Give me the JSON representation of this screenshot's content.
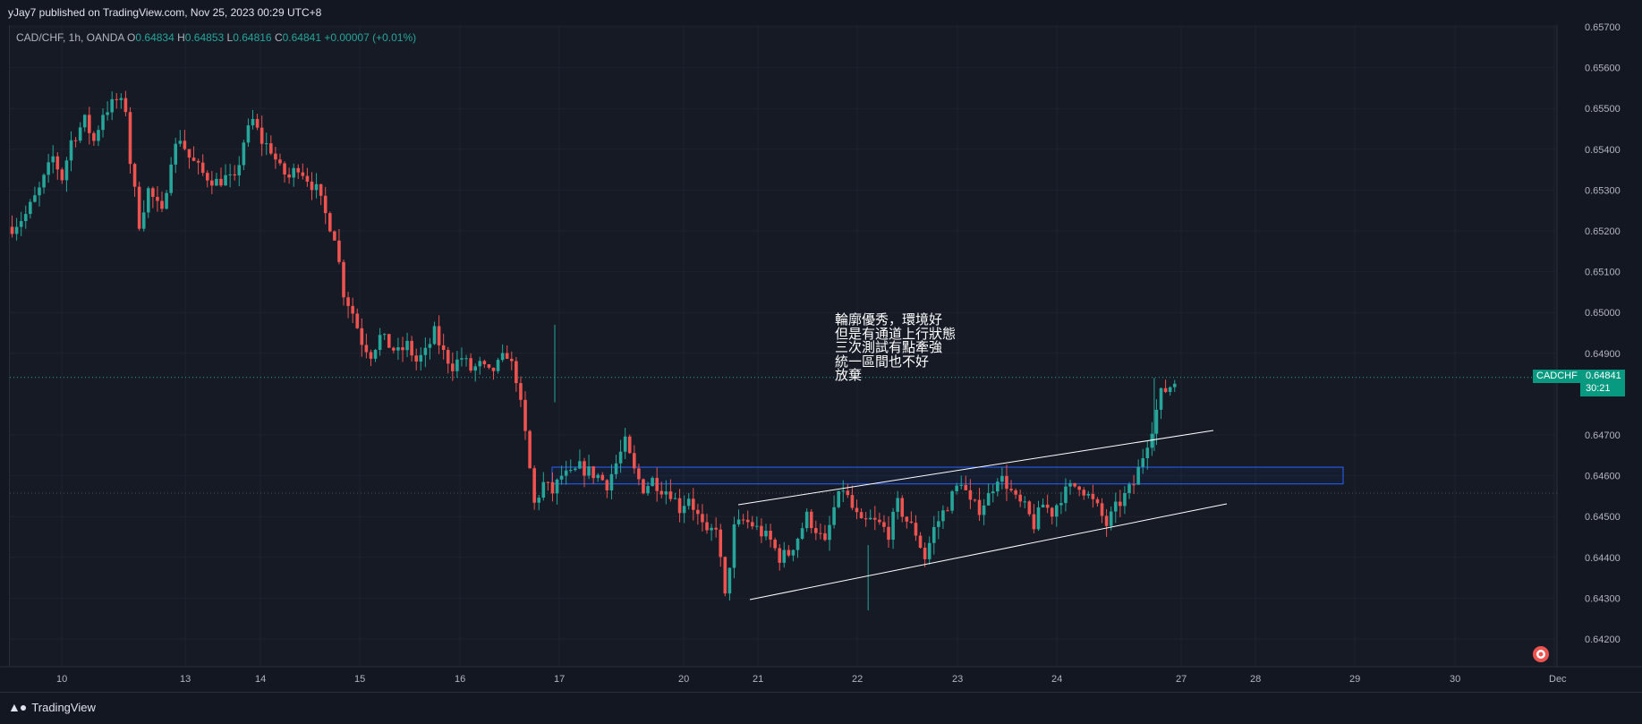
{
  "header": {
    "published": "yJay7 published on TradingView.com, Nov 25, 2023 00:29 UTC+8"
  },
  "legend": {
    "symbol": "CAD/CHF, 1h, OANDA",
    "o_key": "O",
    "o": "0.64834",
    "h_key": "H",
    "h": "0.64853",
    "l_key": "L",
    "l": "0.64816",
    "c_key": "C",
    "c": "0.64841",
    "change": "+0.00007 (+0.01%)"
  },
  "annotation": {
    "lines": [
      "輪廓優秀，環境好",
      "但是有通道上行狀態",
      "三次測試有點牽強",
      "統一區間也不好",
      "放棄"
    ]
  },
  "price_label": {
    "symbol": "CADCHF",
    "price": "0.64841",
    "countdown": "30:21"
  },
  "footer": {
    "brand": "TradingView"
  },
  "colors": {
    "up": "#26a69a",
    "down": "#ef5350",
    "background": "#131722",
    "channel": "#ffffff",
    "zone": "#2962ff"
  },
  "chart_data": {
    "type": "candlestick",
    "symbol": "CAD/CHF",
    "timeframe": "1h",
    "y_ticks": [
      "0.65700",
      "0.65600",
      "0.65500",
      "0.65400",
      "0.65300",
      "0.65200",
      "0.65100",
      "0.65000",
      "0.64900",
      "0.64700",
      "0.64600",
      "0.64500",
      "0.64400",
      "0.64300",
      "0.64200"
    ],
    "x_ticks": [
      "10",
      "13",
      "14",
      "15",
      "16",
      "17",
      "20",
      "21",
      "22",
      "23",
      "24",
      "27",
      "28",
      "29",
      "30",
      "Dec"
    ],
    "ylim": [
      0.6413,
      0.657
    ],
    "last_price": 0.64841,
    "grid": true,
    "path": [
      [
        0,
        0.6521
      ],
      [
        3,
        0.6524
      ],
      [
        6,
        0.653
      ],
      [
        9,
        0.6538
      ],
      [
        11,
        0.6533
      ],
      [
        13,
        0.6542
      ],
      [
        16,
        0.6547
      ],
      [
        18,
        0.6542
      ],
      [
        20,
        0.6549
      ],
      [
        23,
        0.6552
      ],
      [
        25,
        0.655
      ],
      [
        26,
        0.6537
      ],
      [
        28,
        0.6522
      ],
      [
        30,
        0.653
      ],
      [
        33,
        0.6524
      ],
      [
        35,
        0.6538
      ],
      [
        37,
        0.6543
      ],
      [
        39,
        0.6538
      ],
      [
        42,
        0.6534
      ],
      [
        45,
        0.6532
      ],
      [
        47,
        0.6533
      ],
      [
        49,
        0.6532
      ],
      [
        51,
        0.6542
      ],
      [
        53,
        0.6547
      ],
      [
        55,
        0.6542
      ],
      [
        57,
        0.654
      ],
      [
        59,
        0.6535
      ],
      [
        61,
        0.6533
      ],
      [
        63,
        0.6536
      ],
      [
        65,
        0.6533
      ],
      [
        67,
        0.653
      ],
      [
        69,
        0.6524
      ],
      [
        71,
        0.6519
      ],
      [
        73,
        0.6505
      ],
      [
        75,
        0.65
      ],
      [
        77,
        0.6493
      ],
      [
        79,
        0.649
      ],
      [
        81,
        0.6494
      ],
      [
        83,
        0.6492
      ],
      [
        85,
        0.649
      ],
      [
        87,
        0.6492
      ],
      [
        89,
        0.6488
      ],
      [
        91,
        0.649
      ],
      [
        93,
        0.6495
      ],
      [
        95,
        0.649
      ],
      [
        97,
        0.6487
      ],
      [
        99,
        0.6489
      ],
      [
        101,
        0.6486
      ],
      [
        103,
        0.6487
      ],
      [
        105,
        0.6485
      ],
      [
        107,
        0.6487
      ],
      [
        109,
        0.649
      ],
      [
        111,
        0.6484
      ],
      [
        113,
        0.647
      ],
      [
        115,
        0.6453
      ],
      [
        117,
        0.6458
      ],
      [
        119,
        0.6456
      ],
      [
        121,
        0.646
      ],
      [
        123,
        0.646
      ],
      [
        125,
        0.6462
      ],
      [
        127,
        0.6461
      ],
      [
        129,
        0.646
      ],
      [
        131,
        0.6458
      ],
      [
        133,
        0.6463
      ],
      [
        135,
        0.6468
      ],
      [
        137,
        0.6461
      ],
      [
        139,
        0.6457
      ],
      [
        141,
        0.6459
      ],
      [
        143,
        0.6457
      ],
      [
        145,
        0.6456
      ],
      [
        147,
        0.6452
      ],
      [
        149,
        0.6455
      ],
      [
        151,
        0.645
      ],
      [
        153,
        0.6445
      ],
      [
        155,
        0.6448
      ],
      [
        157,
        0.643
      ],
      [
        159,
        0.6447
      ],
      [
        161,
        0.6449
      ],
      [
        163,
        0.6448
      ],
      [
        165,
        0.6446
      ],
      [
        167,
        0.6444
      ],
      [
        169,
        0.644
      ],
      [
        171,
        0.6441
      ],
      [
        173,
        0.6445
      ],
      [
        175,
        0.645
      ],
      [
        177,
        0.6447
      ],
      [
        179,
        0.6443
      ],
      [
        181,
        0.6452
      ],
      [
        183,
        0.6457
      ],
      [
        185,
        0.6452
      ],
      [
        187,
        0.6448
      ],
      [
        189,
        0.6449
      ],
      [
        191,
        0.6448
      ],
      [
        193,
        0.6446
      ],
      [
        195,
        0.6453
      ],
      [
        197,
        0.6449
      ],
      [
        199,
        0.6446
      ],
      [
        201,
        0.644
      ],
      [
        203,
        0.6447
      ],
      [
        205,
        0.6451
      ],
      [
        207,
        0.6455
      ],
      [
        209,
        0.6459
      ],
      [
        211,
        0.6453
      ],
      [
        213,
        0.6452
      ],
      [
        215,
        0.6455
      ],
      [
        217,
        0.646
      ],
      [
        219,
        0.6458
      ],
      [
        221,
        0.6454
      ],
      [
        223,
        0.6452
      ],
      [
        225,
        0.6448
      ],
      [
        227,
        0.6453
      ],
      [
        229,
        0.6451
      ],
      [
        231,
        0.6455
      ],
      [
        233,
        0.6457
      ],
      [
        235,
        0.6458
      ],
      [
        237,
        0.6455
      ],
      [
        239,
        0.6452
      ],
      [
        241,
        0.6448
      ],
      [
        243,
        0.6452
      ],
      [
        245,
        0.6455
      ],
      [
        247,
        0.6458
      ],
      [
        249,
        0.6465
      ],
      [
        251,
        0.6472
      ],
      [
        253,
        0.648
      ],
      [
        255,
        0.6482
      ],
      [
        257,
        0.6484
      ]
    ],
    "series": [
      {
        "name": "channel-upper",
        "from": [
          0.64525,
          0.64705
        ]
      },
      {
        "name": "channel-lower",
        "from": [
          0.64296,
          0.64528
        ]
      }
    ]
  }
}
